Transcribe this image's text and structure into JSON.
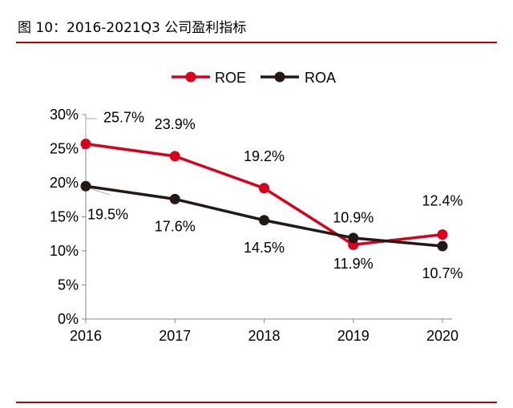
{
  "figure": {
    "title": "图 10：2016-2021Q3 公司盈利指标"
  },
  "colors": {
    "roe": "#d9001b",
    "roa": "#231815",
    "rule": "#c00000",
    "axis": "#888888"
  },
  "chart_data": {
    "type": "line",
    "title": "",
    "xlabel": "",
    "ylabel": "",
    "categories": [
      "2016",
      "2017",
      "2018",
      "2019",
      "2020"
    ],
    "ylim": [
      0,
      30
    ],
    "yticks": [
      "0%",
      "5%",
      "10%",
      "15%",
      "20%",
      "25%",
      "30%"
    ],
    "grid": false,
    "legend": "top-center",
    "series": [
      {
        "name": "ROE",
        "values": [
          25.7,
          23.9,
          19.2,
          10.9,
          12.4
        ],
        "labels": [
          "25.7%",
          "23.9%",
          "19.2%",
          "10.9%",
          "12.4%"
        ]
      },
      {
        "name": "ROA",
        "values": [
          19.5,
          17.6,
          14.5,
          11.9,
          10.7
        ],
        "labels": [
          "19.5%",
          "17.6%",
          "14.5%",
          "11.9%",
          "10.7%"
        ]
      }
    ]
  }
}
